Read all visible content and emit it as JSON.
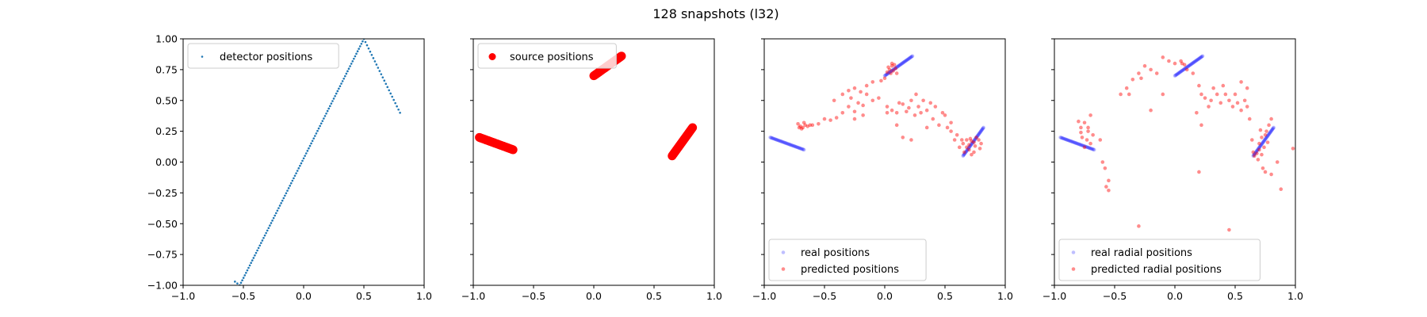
{
  "figure": {
    "title": "128 snapshots (l32)",
    "colors": {
      "detector": "#1f77b4",
      "source": "#ff0000",
      "real": "#0000ff",
      "predicted": "#ff0000"
    }
  },
  "chart_data": [
    {
      "type": "scatter",
      "xlim": [
        -1.0,
        1.0
      ],
      "ylim": [
        -1.0,
        1.0
      ],
      "xticks": [
        "−1.0",
        "−0.5",
        "0.0",
        "0.5",
        "1.0"
      ],
      "yticks": [
        "1.00",
        "0.75",
        "0.50",
        "0.25",
        "0.00",
        "−0.25",
        "−0.50",
        "−0.75",
        "−1.00"
      ],
      "legend_position": "upper-left",
      "series": [
        {
          "name": "detector positions",
          "color": "#1f77b4",
          "marker_size": 1.3,
          "segments": [
            {
              "from": [
                -0.57,
                -0.97
              ],
              "to": [
                -0.53,
                -1.0
              ],
              "n": 3
            },
            {
              "from": [
                -0.53,
                -1.0
              ],
              "to": [
                0.5,
                1.0
              ],
              "n": 100
            },
            {
              "from": [
                0.5,
                1.0
              ],
              "to": [
                0.8,
                0.4
              ],
              "n": 24
            }
          ]
        }
      ]
    },
    {
      "type": "scatter",
      "xlim": [
        -1.0,
        1.0
      ],
      "ylim": [
        -1.0,
        1.0
      ],
      "xticks": [
        "−1.0",
        "−0.5",
        "0.0",
        "0.5",
        "1.0"
      ],
      "legend_position": "upper-left",
      "series": [
        {
          "name": "source positions",
          "color": "#ff0000",
          "marker_size": 5.5,
          "segments": [
            {
              "from": [
                -0.95,
                0.2
              ],
              "to": [
                -0.67,
                0.1
              ],
              "n": 40
            },
            {
              "from": [
                0.0,
                0.7
              ],
              "to": [
                0.23,
                0.86
              ],
              "n": 40
            },
            {
              "from": [
                0.65,
                0.05
              ],
              "to": [
                0.82,
                0.28
              ],
              "n": 40
            }
          ]
        }
      ]
    },
    {
      "type": "scatter",
      "xlim": [
        -1.0,
        1.0
      ],
      "ylim": [
        -1.0,
        1.0
      ],
      "xticks": [
        "−1.0",
        "−0.5",
        "0.0",
        "0.5",
        "1.0"
      ],
      "legend_position": "lower-left",
      "series": [
        {
          "name": "real positions",
          "color": "#0000ff",
          "marker_size": 2.3,
          "opacity": 0.25,
          "segments": [
            {
              "from": [
                -0.95,
                0.2
              ],
              "to": [
                -0.67,
                0.1
              ],
              "n": 40
            },
            {
              "from": [
                0.0,
                0.7
              ],
              "to": [
                0.23,
                0.86
              ],
              "n": 40
            },
            {
              "from": [
                0.65,
                0.05
              ],
              "to": [
                0.82,
                0.28
              ],
              "n": 40
            }
          ]
        },
        {
          "name": "predicted positions",
          "color": "#ff0000",
          "marker_size": 2.3,
          "opacity": 0.45,
          "points": [
            [
              -0.72,
              0.31
            ],
            [
              -0.7,
              0.29
            ],
            [
              -0.68,
              0.28
            ],
            [
              -0.66,
              0.3
            ],
            [
              -0.64,
              0.29
            ],
            [
              -0.62,
              0.3
            ],
            [
              -0.69,
              0.27
            ],
            [
              -0.71,
              0.28
            ],
            [
              -0.6,
              0.3
            ],
            [
              -0.67,
              0.32
            ],
            [
              -0.55,
              0.31
            ],
            [
              -0.5,
              0.35
            ],
            [
              -0.45,
              0.34
            ],
            [
              -0.4,
              0.36
            ],
            [
              -0.35,
              0.4
            ],
            [
              -0.3,
              0.45
            ],
            [
              -0.25,
              0.41
            ],
            [
              -0.22,
              0.48
            ],
            [
              -0.18,
              0.46
            ],
            [
              -0.15,
              0.55
            ],
            [
              -0.1,
              0.5
            ],
            [
              -0.05,
              0.52
            ],
            [
              -0.35,
              0.55
            ],
            [
              -0.3,
              0.58
            ],
            [
              -0.25,
              0.6
            ],
            [
              -0.2,
              0.57
            ],
            [
              -0.15,
              0.62
            ],
            [
              -0.1,
              0.65
            ],
            [
              -0.42,
              0.5
            ],
            [
              -0.25,
              0.35
            ],
            [
              -0.18,
              0.38
            ],
            [
              -0.28,
              0.52
            ],
            [
              0.02,
              0.73
            ],
            [
              0.04,
              0.75
            ],
            [
              0.06,
              0.78
            ],
            [
              0.07,
              0.74
            ],
            [
              0.08,
              0.79
            ],
            [
              0.05,
              0.72
            ],
            [
              0.09,
              0.76
            ],
            [
              0.06,
              0.8
            ],
            [
              0.03,
              0.77
            ],
            [
              0.1,
              0.72
            ],
            [
              0.0,
              0.68
            ],
            [
              -0.03,
              0.66
            ],
            [
              0.02,
              0.45
            ],
            [
              0.06,
              0.42
            ],
            [
              0.1,
              0.4
            ],
            [
              0.15,
              0.47
            ],
            [
              0.2,
              0.44
            ],
            [
              0.25,
              0.38
            ],
            [
              0.12,
              0.48
            ],
            [
              0.18,
              0.41
            ],
            [
              0.22,
              0.5
            ],
            [
              0.28,
              0.45
            ],
            [
              0.3,
              0.4
            ],
            [
              0.35,
              0.42
            ],
            [
              0.4,
              0.35
            ],
            [
              0.42,
              0.45
            ],
            [
              0.48,
              0.4
            ],
            [
              0.5,
              0.38
            ],
            [
              0.55,
              0.32
            ],
            [
              0.52,
              0.28
            ],
            [
              0.45,
              0.3
            ],
            [
              0.38,
              0.48
            ],
            [
              0.32,
              0.5
            ],
            [
              0.26,
              0.55
            ],
            [
              0.35,
              0.28
            ],
            [
              0.55,
              0.25
            ],
            [
              0.58,
              0.18
            ],
            [
              0.6,
              0.22
            ],
            [
              0.15,
              0.2
            ],
            [
              0.22,
              0.18
            ],
            [
              0.1,
              0.3
            ],
            [
              0.02,
              0.4
            ],
            [
              0.62,
              0.12
            ],
            [
              0.65,
              0.15
            ],
            [
              0.68,
              0.18
            ],
            [
              0.7,
              0.14
            ],
            [
              0.72,
              0.17
            ],
            [
              0.74,
              0.16
            ],
            [
              0.75,
              0.13
            ],
            [
              0.78,
              0.18
            ],
            [
              0.8,
              0.15
            ],
            [
              0.76,
              0.2
            ],
            [
              0.7,
              0.1
            ],
            [
              0.66,
              0.08
            ],
            [
              0.72,
              0.06
            ],
            [
              0.68,
              0.12
            ],
            [
              0.74,
              0.08
            ],
            [
              0.64,
              0.18
            ],
            [
              0.79,
              0.11
            ],
            [
              0.71,
              0.19
            ]
          ]
        }
      ]
    },
    {
      "type": "scatter",
      "xlim": [
        -1.0,
        1.0
      ],
      "ylim": [
        -1.0,
        1.0
      ],
      "xticks": [
        "−1.0",
        "−0.5",
        "0.0",
        "0.5",
        "1.0"
      ],
      "legend_position": "lower-left",
      "series": [
        {
          "name": "real radial positions",
          "color": "#0000ff",
          "marker_size": 2.3,
          "opacity": 0.25,
          "segments": [
            {
              "from": [
                -0.95,
                0.2
              ],
              "to": [
                -0.67,
                0.1
              ],
              "n": 40
            },
            {
              "from": [
                0.0,
                0.7
              ],
              "to": [
                0.23,
                0.86
              ],
              "n": 40
            },
            {
              "from": [
                0.65,
                0.05
              ],
              "to": [
                0.82,
                0.28
              ],
              "n": 40
            }
          ]
        },
        {
          "name": "predicted radial positions",
          "color": "#ff0000",
          "marker_size": 2.3,
          "opacity": 0.45,
          "points": [
            [
              -0.8,
              0.33
            ],
            [
              -0.78,
              0.28
            ],
            [
              -0.75,
              0.32
            ],
            [
              -0.72,
              0.25
            ],
            [
              -0.7,
              0.38
            ],
            [
              -0.68,
              0.22
            ],
            [
              -0.77,
              0.2
            ],
            [
              -0.73,
              0.18
            ],
            [
              -0.7,
              0.15
            ],
            [
              -0.75,
              0.12
            ],
            [
              -0.72,
              0.28
            ],
            [
              -0.78,
              0.24
            ],
            [
              -0.62,
              0.18
            ],
            [
              -0.6,
              0.0
            ],
            [
              -0.58,
              -0.05
            ],
            [
              -0.55,
              -0.15
            ],
            [
              -0.57,
              -0.2
            ],
            [
              -0.55,
              -0.23
            ],
            [
              -0.45,
              0.55
            ],
            [
              -0.4,
              0.6
            ],
            [
              -0.38,
              0.55
            ],
            [
              -0.35,
              0.67
            ],
            [
              -0.3,
              0.72
            ],
            [
              -0.28,
              0.68
            ],
            [
              -0.25,
              0.78
            ],
            [
              -0.2,
              0.75
            ],
            [
              -0.15,
              0.72
            ],
            [
              -0.1,
              0.85
            ],
            [
              -0.05,
              0.82
            ],
            [
              0.0,
              0.8
            ],
            [
              0.05,
              0.82
            ],
            [
              0.06,
              0.8
            ],
            [
              0.08,
              0.79
            ],
            [
              -0.1,
              0.55
            ],
            [
              -0.2,
              0.42
            ],
            [
              -0.3,
              -0.52
            ],
            [
              0.1,
              0.75
            ],
            [
              0.15,
              0.72
            ],
            [
              0.2,
              0.62
            ],
            [
              0.22,
              0.55
            ],
            [
              0.25,
              0.52
            ],
            [
              0.28,
              0.45
            ],
            [
              0.3,
              0.5
            ],
            [
              0.32,
              0.6
            ],
            [
              0.35,
              0.55
            ],
            [
              0.38,
              0.48
            ],
            [
              0.4,
              0.62
            ],
            [
              0.42,
              0.55
            ],
            [
              0.45,
              0.5
            ],
            [
              0.48,
              0.45
            ],
            [
              0.5,
              0.55
            ],
            [
              0.52,
              0.48
            ],
            [
              0.55,
              0.42
            ],
            [
              0.58,
              0.5
            ],
            [
              0.6,
              0.45
            ],
            [
              0.62,
              0.35
            ],
            [
              0.55,
              0.65
            ],
            [
              0.6,
              0.6
            ],
            [
              0.22,
              0.3
            ],
            [
              0.18,
              0.4
            ],
            [
              0.2,
              -0.08
            ],
            [
              0.45,
              -0.55
            ],
            [
              0.65,
              0.08
            ],
            [
              0.68,
              0.07
            ],
            [
              0.7,
              0.1
            ],
            [
              0.66,
              0.05
            ],
            [
              0.72,
              0.06
            ],
            [
              0.74,
              0.12
            ],
            [
              0.7,
              0.15
            ],
            [
              0.72,
              0.2
            ],
            [
              0.75,
              0.22
            ],
            [
              0.76,
              0.25
            ],
            [
              0.78,
              0.3
            ],
            [
              0.8,
              0.35
            ],
            [
              0.73,
              -0.05
            ],
            [
              0.75,
              -0.08
            ],
            [
              0.8,
              -0.1
            ],
            [
              0.85,
              0.0
            ],
            [
              0.88,
              -0.22
            ],
            [
              0.98,
              0.11
            ],
            [
              0.64,
              0.18
            ],
            [
              0.69,
              0.02
            ],
            [
              0.71,
              0.26
            ],
            [
              0.77,
              0.16
            ]
          ]
        }
      ]
    }
  ]
}
